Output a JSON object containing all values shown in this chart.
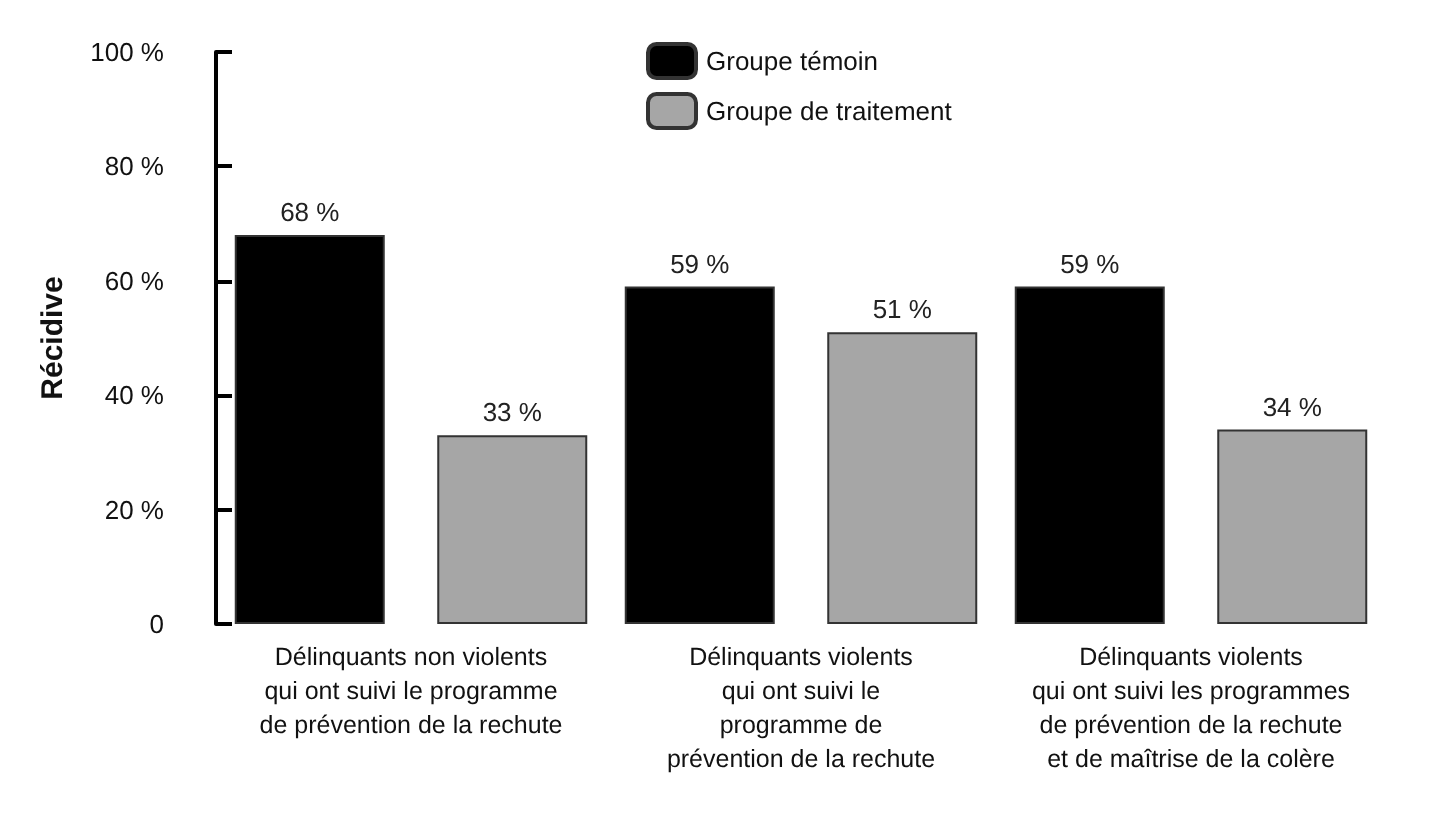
{
  "chart_data": {
    "type": "bar",
    "ylabel": "Récidive",
    "categories": [
      "Délinquants non violents\nqui ont suivi le programme\nde prévention de la rechute",
      "Délinquants violents\nqui ont suivi le\nprogramme de\nprévention de la rechute",
      "Délinquants violents\nqui ont suivi les programmes\nde prévention de la rechute\net de maîtrise de la colère"
    ],
    "series": [
      {
        "name": "Groupe témoin",
        "color": "#000000",
        "values": [
          68,
          59,
          59
        ],
        "value_labels": [
          "68 %",
          "59 %",
          "59 %"
        ]
      },
      {
        "name": "Groupe de traitement",
        "color": "#a6a6a6",
        "values": [
          33,
          51,
          34
        ],
        "value_labels": [
          "33 %",
          "51 %",
          "34 %"
        ]
      }
    ],
    "ylim": [
      0,
      100
    ],
    "yticks": [
      0,
      {
        "value": 20,
        "label": "20 %"
      },
      {
        "value": 40,
        "label": "40 %"
      },
      {
        "value": 60,
        "label": "60 %"
      },
      {
        "value": 80,
        "label": "80 %"
      },
      {
        "value": 100,
        "label": "100 %"
      }
    ],
    "grid": false,
    "legend": "top"
  }
}
